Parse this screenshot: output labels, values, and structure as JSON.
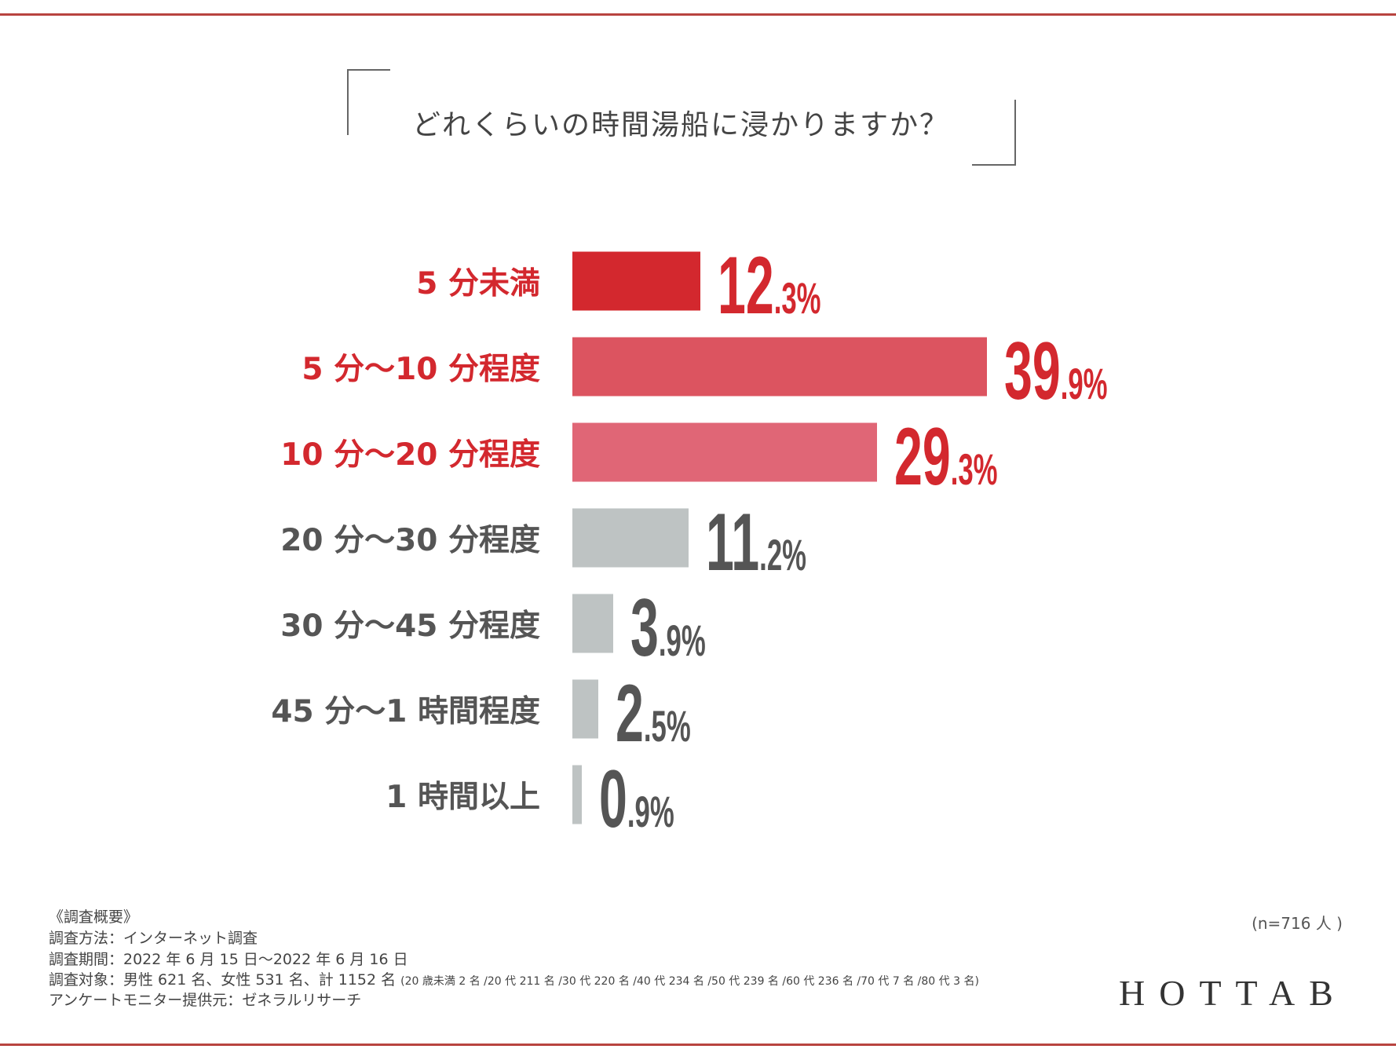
{
  "title": "どれくらいの時間湯船に浸かりますか？",
  "chart_data": {
    "type": "bar",
    "orientation": "horizontal",
    "title": "どれくらいの時間湯船に浸かりますか？",
    "categories": [
      "5 分未満",
      "5 分〜10 分程度",
      "10 分〜20 分程度",
      "20 分〜30 分程度",
      "30 分〜45 分程度",
      "45 分〜1 時間程度",
      "1 時間以上"
    ],
    "values": [
      12.3,
      39.9,
      29.3,
      11.2,
      3.9,
      2.5,
      0.9
    ],
    "value_int": [
      "12",
      "39",
      "29",
      "11",
      "3",
      "2",
      "0"
    ],
    "value_dec": [
      ".3%",
      ".9%",
      ".3%",
      ".2%",
      ".9%",
      ".5%",
      ".9%"
    ],
    "bar_colors": [
      "#d3282e",
      "#dc5460",
      "#e06676",
      "#bec3c3",
      "#bec3c3",
      "#bec3c3",
      "#bec3c3"
    ],
    "label_colors": [
      "#d3282e",
      "#d3282e",
      "#d3282e",
      "#555555",
      "#555555",
      "#555555",
      "#555555"
    ],
    "unit": "%"
  },
  "sample": "(n=716 人 )",
  "footer": {
    "heading": "《調査概要》",
    "method": "調査方法：インターネット調査",
    "period": "調査期間：2022 年 6 月 15 日〜2022 年 6 月 16 日",
    "target": "調査対象：男性 621 名、女性 531 名、計 1152 名",
    "target_detail": "(20 歳未満 2 名 /20 代 211 名 /30 代 220 名 /40 代 234 名 /50 代 239 名 /60 代 236 名 /70 代 7 名 /80 代 3 名)",
    "provider": "アンケートモニター提供元：ゼネラルリサーチ"
  },
  "logo": "HOTTAB"
}
